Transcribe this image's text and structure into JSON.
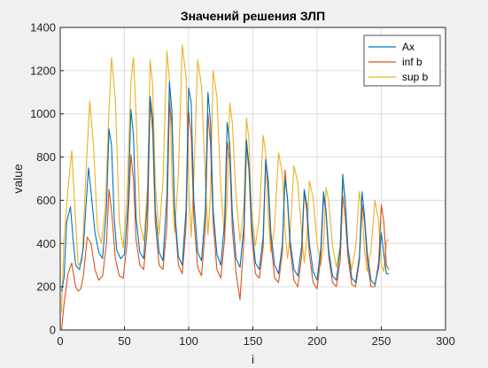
{
  "chart_data": {
    "type": "line",
    "title": "Значений решения ЗЛП",
    "xlabel": "i",
    "ylabel": "value",
    "xlim": [
      0,
      300
    ],
    "ylim": [
      0,
      1400
    ],
    "xticks": [
      0,
      50,
      100,
      150,
      200,
      250,
      300
    ],
    "yticks": [
      0,
      200,
      400,
      600,
      800,
      1000,
      1200,
      1400
    ],
    "grid": true,
    "legend": "top-right",
    "colors": {
      "Ax": "#0072bd",
      "inf b": "#d95319",
      "sup b": "#edb120"
    },
    "series": [
      {
        "name": "Ax",
        "x": [
          1,
          3,
          5,
          8,
          10,
          12,
          15,
          18,
          20,
          22,
          24,
          27,
          30,
          33,
          36,
          38,
          40,
          42,
          44,
          47,
          50,
          53,
          55,
          57,
          59,
          62,
          65,
          68,
          70,
          72,
          74,
          77,
          80,
          83,
          85,
          87,
          89,
          92,
          95,
          98,
          100,
          102,
          104,
          107,
          110,
          113,
          115,
          117,
          119,
          122,
          125,
          128,
          130,
          132,
          134,
          137,
          140,
          143,
          145,
          147,
          149,
          152,
          155,
          158,
          160,
          162,
          164,
          167,
          170,
          173,
          175,
          177,
          179,
          182,
          185,
          188,
          190,
          192,
          194,
          197,
          200,
          203,
          205,
          207,
          209,
          212,
          215,
          218,
          220,
          222,
          224,
          227,
          230,
          233,
          235,
          237,
          239,
          242,
          245,
          248,
          250,
          252,
          254,
          256
        ],
        "values": [
          180,
          240,
          500,
          570,
          420,
          300,
          280,
          380,
          570,
          750,
          640,
          450,
          360,
          330,
          560,
          930,
          850,
          520,
          370,
          330,
          350,
          600,
          1020,
          900,
          520,
          360,
          330,
          600,
          1080,
          980,
          560,
          360,
          320,
          620,
          1150,
          1010,
          560,
          340,
          300,
          560,
          1120,
          1050,
          600,
          360,
          320,
          550,
          1100,
          960,
          560,
          350,
          300,
          500,
          960,
          860,
          540,
          330,
          290,
          480,
          880,
          760,
          500,
          310,
          280,
          430,
          790,
          690,
          450,
          300,
          260,
          400,
          700,
          610,
          410,
          280,
          250,
          390,
          650,
          580,
          400,
          270,
          230,
          380,
          640,
          550,
          370,
          250,
          230,
          380,
          720,
          590,
          380,
          240,
          220,
          340,
          640,
          520,
          360,
          230,
          210,
          290,
          450,
          350,
          260,
          260
        ]
      },
      {
        "name": "inf b",
        "x": [
          1,
          3,
          6,
          9,
          12,
          14,
          16,
          18,
          21,
          24,
          27,
          30,
          33,
          36,
          38,
          40,
          43,
          46,
          49,
          52,
          55,
          57,
          59,
          62,
          65,
          68,
          70,
          72,
          74,
          77,
          80,
          83,
          85,
          87,
          89,
          92,
          95,
          98,
          100,
          102,
          104,
          107,
          110,
          113,
          115,
          117,
          119,
          122,
          125,
          128,
          130,
          132,
          134,
          137,
          140,
          143,
          145,
          147,
          149,
          152,
          155,
          158,
          160,
          162,
          164,
          167,
          170,
          173,
          175,
          177,
          179,
          182,
          185,
          188,
          190,
          192,
          194,
          197,
          200,
          203,
          205,
          207,
          209,
          212,
          215,
          218,
          220,
          222,
          224,
          227,
          230,
          233,
          235,
          237,
          239,
          242,
          245,
          248,
          250,
          252,
          254,
          256
        ],
        "values": [
          0,
          120,
          260,
          310,
          200,
          180,
          190,
          250,
          430,
          400,
          280,
          230,
          250,
          400,
          650,
          550,
          330,
          250,
          240,
          400,
          810,
          700,
          420,
          300,
          280,
          480,
          1060,
          920,
          500,
          300,
          280,
          480,
          1050,
          950,
          540,
          300,
          260,
          480,
          1010,
          900,
          520,
          290,
          250,
          470,
          1000,
          860,
          500,
          280,
          240,
          420,
          870,
          790,
          470,
          260,
          140,
          420,
          850,
          740,
          450,
          260,
          240,
          380,
          790,
          660,
          410,
          240,
          220,
          360,
          740,
          600,
          380,
          230,
          200,
          340,
          640,
          550,
          350,
          220,
          190,
          340,
          620,
          540,
          340,
          220,
          200,
          320,
          620,
          520,
          340,
          210,
          200,
          320,
          580,
          500,
          320,
          200,
          200,
          320,
          580,
          500,
          300,
          280
        ]
      },
      {
        "name": "sup b",
        "x": [
          1,
          3,
          6,
          9,
          12,
          14,
          17,
          20,
          23,
          26,
          29,
          32,
          35,
          38,
          40,
          43,
          46,
          49,
          52,
          55,
          57,
          59,
          62,
          65,
          68,
          70,
          72,
          74,
          77,
          80,
          83,
          85,
          87,
          89,
          92,
          95,
          98,
          100,
          102,
          104,
          107,
          110,
          113,
          115,
          117,
          119,
          122,
          125,
          128,
          130,
          132,
          134,
          137,
          140,
          143,
          145,
          147,
          149,
          152,
          155,
          158,
          160,
          162,
          164,
          167,
          170,
          173,
          175,
          177,
          179,
          182,
          185,
          188,
          190,
          192,
          194,
          197,
          200,
          203,
          205,
          207,
          209,
          212,
          215,
          218,
          220,
          222,
          224,
          227,
          230,
          233,
          235,
          237,
          239,
          242,
          245,
          248,
          250,
          252,
          254,
          256
        ],
        "values": [
          80,
          420,
          650,
          830,
          500,
          300,
          320,
          720,
          1060,
          850,
          470,
          400,
          560,
          1020,
          1260,
          1060,
          500,
          380,
          620,
          1150,
          1260,
          1000,
          500,
          410,
          660,
          1250,
          1130,
          680,
          440,
          690,
          1290,
          1160,
          700,
          450,
          720,
          1320,
          1170,
          680,
          430,
          700,
          1250,
          1130,
          700,
          440,
          630,
          1200,
          1080,
          660,
          430,
          600,
          1050,
          960,
          610,
          410,
          570,
          980,
          880,
          560,
          390,
          520,
          900,
          820,
          520,
          360,
          480,
          820,
          720,
          470,
          330,
          440,
          760,
          680,
          450,
          310,
          420,
          690,
          610,
          400,
          300,
          400,
          660,
          600,
          390,
          290,
          390,
          680,
          580,
          380,
          280,
          380,
          640,
          550,
          360,
          270,
          370,
          600,
          500,
          300,
          270,
          410,
          420
        ]
      }
    ]
  }
}
